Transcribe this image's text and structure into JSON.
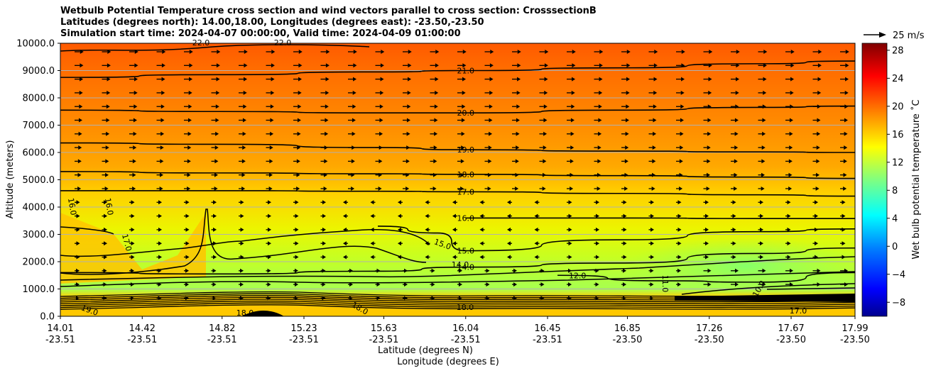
{
  "chart_data": {
    "type": "heatmap",
    "title_lines": [
      "Wetbulb Potential Temperature cross section and wind vectors parallel to cross section: CrosssectionB",
      "Latitudes (degrees north): 14.00,18.00, Longitudes (degrees east): -23.50,-23.50",
      "Simulation start time: 2024-04-07 00:00:00, Valid time: 2024-04-09 01:00:00"
    ],
    "ylabel": "Altitude (meters)",
    "xlabel": "Latitude (degrees N)",
    "xlabel2": "Longitude (degrees E)",
    "ylim": [
      0,
      10000
    ],
    "yticks": [
      0,
      1000,
      2000,
      3000,
      4000,
      5000,
      6000,
      7000,
      8000,
      9000,
      10000
    ],
    "ytick_labels": [
      "0.0",
      "1000.0",
      "2000.0",
      "3000.0",
      "4000.0",
      "5000.0",
      "6000.0",
      "7000.0",
      "8000.0",
      "9000.0",
      "10000.0"
    ],
    "xlim": [
      14.01,
      17.99
    ],
    "xticks": [
      14.01,
      14.42,
      14.82,
      15.23,
      15.63,
      16.04,
      16.45,
      16.85,
      17.26,
      17.67,
      17.99
    ],
    "xtick_lat_labels": [
      "14.01",
      "14.42",
      "14.82",
      "15.23",
      "15.63",
      "16.04",
      "16.45",
      "16.85",
      "17.26",
      "17.67",
      "17.99"
    ],
    "xtick_lon_labels": [
      "-23.51",
      "-23.51",
      "-23.51",
      "-23.51",
      "-23.51",
      "-23.51",
      "-23.51",
      "-23.50",
      "-23.50",
      "-23.50",
      "-23.50"
    ],
    "grid": "horizontal",
    "colorbar": {
      "label": "Wet bulb potential temperature ˚C",
      "range": [
        -10,
        29
      ],
      "ticks": [
        -8,
        -4,
        0,
        4,
        8,
        12,
        16,
        20,
        24,
        28
      ],
      "tick_labels": [
        "−8",
        "−4",
        "0",
        "4",
        "8",
        "12",
        "16",
        "20",
        "24",
        "28"
      ]
    },
    "quiver_key": {
      "label": "25 m/s",
      "speed": 25
    },
    "contours": [
      {
        "label": "21.0",
        "level": 21,
        "points": [
          [
            14.01,
            8750
          ],
          [
            14.8,
            8850
          ],
          [
            15.6,
            8950
          ],
          [
            16.04,
            9000
          ],
          [
            16.8,
            9100
          ],
          [
            17.5,
            9250
          ],
          [
            17.99,
            9350
          ]
        ]
      },
      {
        "label": "20.0",
        "level": 20,
        "points": [
          [
            14.01,
            7550
          ],
          [
            14.8,
            7500
          ],
          [
            15.6,
            7450
          ],
          [
            16.04,
            7450
          ],
          [
            16.8,
            7550
          ],
          [
            17.5,
            7650
          ],
          [
            17.99,
            7700
          ]
        ]
      },
      {
        "label": "19.0",
        "level": 19,
        "points": [
          [
            14.01,
            6350
          ],
          [
            14.8,
            6300
          ],
          [
            15.6,
            6180
          ],
          [
            16.04,
            6100
          ],
          [
            16.8,
            6050
          ],
          [
            17.5,
            6020
          ],
          [
            17.99,
            6000
          ]
        ]
      },
      {
        "label": "18.0",
        "level": 18,
        "points": [
          [
            14.01,
            5300
          ],
          [
            14.8,
            5250
          ],
          [
            15.6,
            5220
          ],
          [
            16.04,
            5200
          ],
          [
            16.8,
            5150
          ],
          [
            17.5,
            5100
          ],
          [
            17.99,
            5050
          ]
        ]
      },
      {
        "label": "17.0",
        "level": 17,
        "points": [
          [
            14.01,
            4600
          ],
          [
            14.8,
            4600
          ],
          [
            15.6,
            4580
          ],
          [
            16.04,
            4560
          ],
          [
            16.8,
            4500
          ],
          [
            17.5,
            4450
          ],
          [
            17.99,
            4400
          ]
        ]
      },
      {
        "label": "16.0",
        "level": 16,
        "points": [
          [
            16.04,
            3600
          ],
          [
            16.8,
            3600
          ],
          [
            17.5,
            3580
          ],
          [
            17.99,
            3580
          ]
        ]
      },
      {
        "label": "15.0",
        "level": 15,
        "points": [
          [
            15.6,
            3300
          ],
          [
            15.9,
            3050
          ],
          [
            16.04,
            2400
          ],
          [
            16.8,
            2800
          ],
          [
            17.5,
            3100
          ],
          [
            17.99,
            3200
          ]
        ]
      },
      {
        "label": "14.0",
        "level": 14,
        "points": [
          [
            14.01,
            1600
          ],
          [
            14.8,
            1550
          ],
          [
            15.6,
            1650
          ],
          [
            16.04,
            1800
          ],
          [
            16.8,
            1950
          ],
          [
            17.5,
            2300
          ],
          [
            17.99,
            2500
          ]
        ]
      },
      {
        "label": "12.0",
        "level": 12,
        "points": [
          [
            16.5,
            1500
          ],
          [
            17.0,
            1300
          ],
          [
            17.5,
            1250
          ],
          [
            17.99,
            1600
          ]
        ]
      }
    ],
    "contour_labels_extra": [
      "22.0",
      "22.0",
      "16.0",
      "16.0",
      "17.0",
      "15.0",
      "14.0",
      "18.0",
      "18.0",
      "19.0",
      "18.0",
      "11.0",
      "10.0",
      "17.0"
    ]
  }
}
